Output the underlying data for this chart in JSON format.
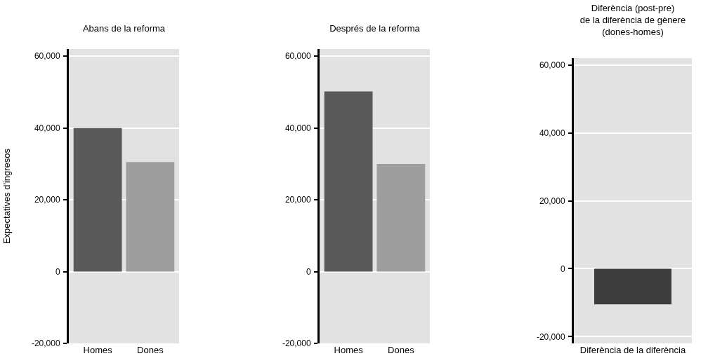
{
  "chart_data": [
    {
      "type": "bar",
      "title": "Abans de la reforma",
      "ylabel": "Expectatives d'ingresos",
      "categories": [
        "Homes",
        "Dones"
      ],
      "values": [
        40000,
        30500
      ],
      "colors": [
        "#595959",
        "#9e9e9e"
      ],
      "ylim": [
        -20000,
        62000
      ],
      "yticks": [
        {
          "value": -20000,
          "label": "-20,000"
        },
        {
          "value": 0,
          "label": "0"
        },
        {
          "value": 20000,
          "label": "20,000"
        },
        {
          "value": 40000,
          "label": "40,000"
        },
        {
          "value": 60000,
          "label": "60,000"
        }
      ],
      "grid": "y"
    },
    {
      "type": "bar",
      "title": "Després de la reforma",
      "categories": [
        "Homes",
        "Dones"
      ],
      "values": [
        50200,
        30000
      ],
      "colors": [
        "#595959",
        "#9e9e9e"
      ],
      "ylim": [
        -20000,
        62000
      ],
      "yticks": [
        {
          "value": -20000,
          "label": "-20,000"
        },
        {
          "value": 0,
          "label": "0"
        },
        {
          "value": 20000,
          "label": "20,000"
        },
        {
          "value": 40000,
          "label": "40,000"
        },
        {
          "value": 60000,
          "label": "60,000"
        }
      ],
      "grid": "y"
    },
    {
      "type": "bar",
      "title": "Diferència (post-pre)\nde la diferència de gènere\n(dones-homes)",
      "categories": [
        "Diferència de la diferència"
      ],
      "values": [
        -10500
      ],
      "colors": [
        "#3d3d3d"
      ],
      "ylim": [
        -22000,
        62000
      ],
      "yticks": [
        {
          "value": -20000,
          "label": "-20,000"
        },
        {
          "value": 0,
          "label": "0"
        },
        {
          "value": 20000,
          "label": "20,000"
        },
        {
          "value": 40000,
          "label": "40,000"
        },
        {
          "value": 60000,
          "label": "60,000"
        }
      ],
      "grid": "y"
    }
  ]
}
